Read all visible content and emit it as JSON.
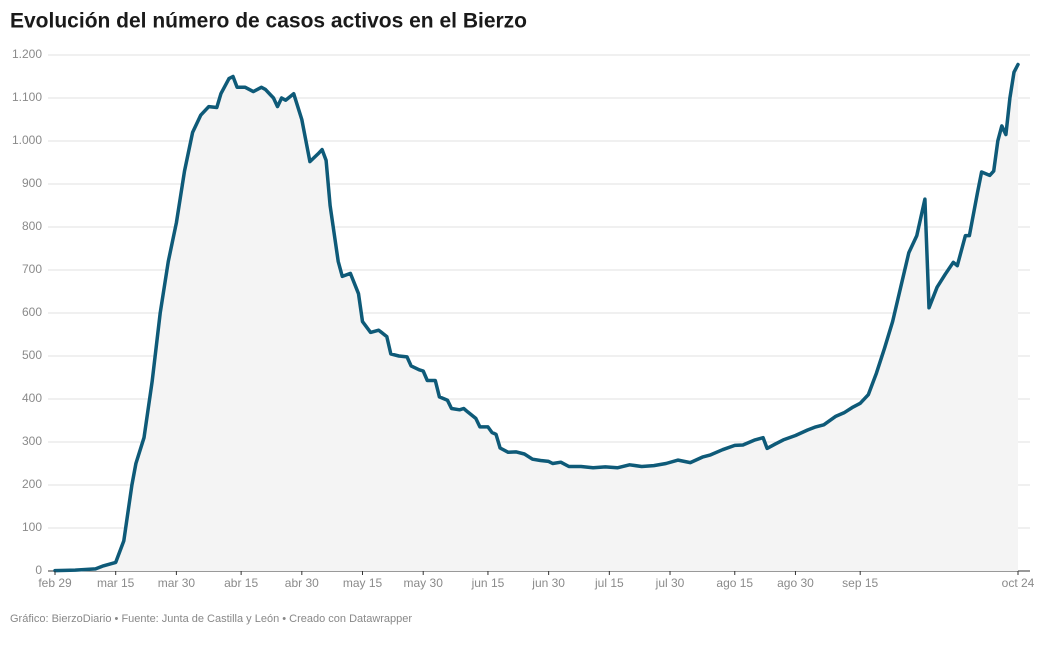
{
  "chart_data": {
    "type": "line",
    "title": "Evolución del número de casos activos en el Bierzo",
    "footer": "Gráfico: BierzoDiario • Fuente: Junta de Castilla y León • Creado con Datawrapper",
    "color": "#0e5a78",
    "fill_color": "#f4f4f4",
    "grid": true,
    "xlim": [
      0,
      238
    ],
    "xticks": [
      {
        "value": 0,
        "label": "feb 29"
      },
      {
        "value": 15,
        "label": "mar 15"
      },
      {
        "value": 30,
        "label": "mar 30"
      },
      {
        "value": 46,
        "label": "abr 15"
      },
      {
        "value": 61,
        "label": "abr 30"
      },
      {
        "value": 76,
        "label": "may 15"
      },
      {
        "value": 91,
        "label": "may 30"
      },
      {
        "value": 107,
        "label": "jun 15"
      },
      {
        "value": 122,
        "label": "jun 30"
      },
      {
        "value": 137,
        "label": "jul 15"
      },
      {
        "value": 152,
        "label": "jul 30"
      },
      {
        "value": 168,
        "label": "ago 15"
      },
      {
        "value": 183,
        "label": "ago 30"
      },
      {
        "value": 199,
        "label": "sep 15"
      },
      {
        "value": 238,
        "label": "oct 24"
      }
    ],
    "ylim": [
      0,
      1200
    ],
    "yticks": [
      0,
      100,
      200,
      300,
      400,
      500,
      600,
      700,
      800,
      900,
      {
        "value": 1000,
        "label": "1.000"
      },
      {
        "value": 1100,
        "label": "1.100"
      },
      {
        "value": 1200,
        "label": "1.200"
      }
    ],
    "x": [
      0,
      5,
      10,
      12,
      15,
      17,
      19,
      20,
      22,
      24,
      26,
      28,
      30,
      32,
      34,
      36,
      38,
      40,
      41,
      43,
      44,
      45,
      47,
      49,
      51,
      52,
      54,
      55,
      56,
      57,
      59,
      61,
      63,
      65,
      66,
      67,
      68,
      70,
      71,
      73,
      75,
      76,
      78,
      80,
      82,
      83,
      85,
      87,
      88,
      90,
      91,
      92,
      94,
      95,
      97,
      98,
      100,
      101,
      102,
      104,
      105,
      107,
      108,
      109,
      110,
      112,
      114,
      116,
      118,
      120,
      122,
      123,
      125,
      127,
      130,
      133,
      136,
      139,
      142,
      145,
      148,
      151,
      154,
      157,
      160,
      162,
      165,
      168,
      170,
      173,
      175,
      176,
      178,
      180,
      183,
      186,
      188,
      190,
      193,
      195,
      197,
      199,
      201,
      203,
      205,
      207,
      209,
      211,
      213,
      215,
      216,
      218,
      220,
      222,
      223,
      225,
      226,
      228,
      229,
      231,
      232,
      233,
      234,
      235,
      236,
      237,
      238
    ],
    "values": [
      1,
      2,
      5,
      12,
      20,
      70,
      200,
      250,
      310,
      440,
      600,
      720,
      810,
      930,
      1020,
      1060,
      1080,
      1078,
      1110,
      1145,
      1150,
      1125,
      1125,
      1115,
      1125,
      1120,
      1100,
      1080,
      1100,
      1095,
      1110,
      1050,
      952,
      970,
      980,
      955,
      850,
      720,
      685,
      692,
      645,
      580,
      555,
      560,
      545,
      505,
      500,
      498,
      477,
      468,
      465,
      443,
      443,
      405,
      397,
      378,
      375,
      378,
      370,
      355,
      335,
      335,
      322,
      318,
      286,
      276,
      277,
      272,
      260,
      257,
      255,
      250,
      253,
      243,
      243,
      240,
      242,
      240,
      247,
      243,
      245,
      250,
      258,
      252,
      265,
      270,
      282,
      292,
      293,
      305,
      310,
      285,
      295,
      305,
      315,
      328,
      335,
      340,
      360,
      368,
      380,
      390,
      410,
      460,
      518,
      580,
      660,
      740,
      780,
      865,
      612,
      660,
      690,
      718,
      710,
      780,
      780,
      880,
      928,
      920,
      930,
      1000,
      1035,
      1015,
      1100,
      1160,
      1178
    ]
  }
}
